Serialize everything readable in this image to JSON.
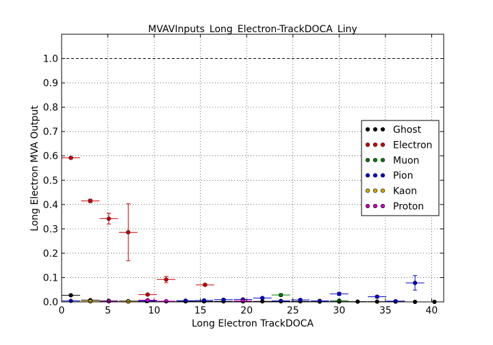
{
  "chart_data": {
    "type": "scatter",
    "title": "MVAVInputs_Long_Electron-TrackDOCA_Liny",
    "xlabel": "Long Electron TrackDOCA",
    "ylabel": "Long Electron MVA Output",
    "xlim": [
      0,
      41.3
    ],
    "ylim": [
      0,
      1.1
    ],
    "xticks": [
      0,
      5,
      10,
      15,
      20,
      25,
      30,
      35,
      40
    ],
    "yticks": [
      0.0,
      0.1,
      0.2,
      0.3,
      0.4,
      0.5,
      0.6,
      0.7,
      0.8,
      0.9,
      1.0
    ],
    "ytick_labels": [
      "0.0",
      "0.1",
      "0.2",
      "0.3",
      "0.4",
      "0.5",
      "0.6",
      "0.7",
      "0.8",
      "0.9",
      "1.0"
    ],
    "grid": true,
    "reference_line_y": 1.0,
    "legend_position": "right",
    "series": [
      {
        "name": "Ghost",
        "color": "#000000",
        "points": [
          {
            "x": 1.0,
            "y": 0.027,
            "xerr": 1.0,
            "yerr": 0.003
          },
          {
            "x": 3.1,
            "y": 0.007,
            "xerr": 1.0,
            "yerr": 0.002
          },
          {
            "x": 5.1,
            "y": 0.004,
            "xerr": 1.0,
            "yerr": 0.002
          },
          {
            "x": 7.2,
            "y": 0.003,
            "xerr": 1.0,
            "yerr": 0.002
          },
          {
            "x": 9.2,
            "y": 0.003,
            "xerr": 1.0,
            "yerr": 0.002
          },
          {
            "x": 11.3,
            "y": 0.002,
            "xerr": 1.0,
            "yerr": 0.002
          },
          {
            "x": 13.4,
            "y": 0.002,
            "xerr": 1.0,
            "yerr": 0.002
          },
          {
            "x": 15.4,
            "y": 0.002,
            "xerr": 1.0,
            "yerr": 0.002
          },
          {
            "x": 17.5,
            "y": 0.002,
            "xerr": 1.0,
            "yerr": 0.002
          },
          {
            "x": 19.6,
            "y": 0.002,
            "xerr": 1.0,
            "yerr": 0.002
          },
          {
            "x": 21.7,
            "y": 0.002,
            "xerr": 1.0,
            "yerr": 0.002
          },
          {
            "x": 23.7,
            "y": 0.002,
            "xerr": 1.0,
            "yerr": 0.002
          },
          {
            "x": 25.8,
            "y": 0.002,
            "xerr": 1.0,
            "yerr": 0.002
          },
          {
            "x": 27.9,
            "y": 0.001,
            "xerr": 1.0,
            "yerr": 0.001
          },
          {
            "x": 30.0,
            "y": 0.001,
            "xerr": 1.0,
            "yerr": 0.001
          },
          {
            "x": 32.0,
            "y": 0.001,
            "xerr": 1.0,
            "yerr": 0.001
          },
          {
            "x": 34.1,
            "y": 0.001,
            "xerr": 1.0,
            "yerr": 0.001
          },
          {
            "x": 36.1,
            "y": 0.001,
            "xerr": 1.0,
            "yerr": 0.001
          },
          {
            "x": 38.2,
            "y": 0.0,
            "xerr": 1.0,
            "yerr": 0.0
          },
          {
            "x": 40.3,
            "y": 0.0,
            "xerr": 1.0,
            "yerr": 0.0
          }
        ]
      },
      {
        "name": "Electron",
        "color": "#cc0000",
        "points": [
          {
            "x": 1.0,
            "y": 0.592,
            "xerr": 1.0,
            "yerr": 0.004
          },
          {
            "x": 3.1,
            "y": 0.415,
            "xerr": 1.0,
            "yerr": 0.007
          },
          {
            "x": 5.1,
            "y": 0.342,
            "xerr": 1.0,
            "yerr": 0.022
          },
          {
            "x": 7.2,
            "y": 0.286,
            "xerr": 1.0,
            "yerr": 0.117
          },
          {
            "x": 9.3,
            "y": 0.03,
            "xerr": 1.0,
            "yerr": 0.003
          },
          {
            "x": 11.3,
            "y": 0.092,
            "xerr": 1.0,
            "yerr": 0.013
          },
          {
            "x": 15.5,
            "y": 0.07,
            "xerr": 1.0,
            "yerr": 0.004
          },
          {
            "x": 19.6,
            "y": 0.003,
            "xerr": 1.0,
            "yerr": 0.002
          }
        ]
      },
      {
        "name": "Muon",
        "color": "#007700",
        "points": [
          {
            "x": 23.7,
            "y": 0.028,
            "xerr": 1.0,
            "yerr": 0.005
          },
          {
            "x": 30.0,
            "y": 0.005,
            "xerr": 1.0,
            "yerr": 0.002
          }
        ]
      },
      {
        "name": "Pion",
        "color": "#0000cc",
        "points": [
          {
            "x": 1.0,
            "y": 0.004,
            "xerr": 1.0,
            "yerr": 0.001
          },
          {
            "x": 9.3,
            "y": 0.004,
            "xerr": 1.0,
            "yerr": 0.001
          },
          {
            "x": 13.4,
            "y": 0.005,
            "xerr": 1.0,
            "yerr": 0.001
          },
          {
            "x": 15.4,
            "y": 0.006,
            "xerr": 1.0,
            "yerr": 0.002
          },
          {
            "x": 17.5,
            "y": 0.009,
            "xerr": 1.0,
            "yerr": 0.002
          },
          {
            "x": 19.6,
            "y": 0.01,
            "xerr": 1.0,
            "yerr": 0.002
          },
          {
            "x": 21.7,
            "y": 0.016,
            "xerr": 1.0,
            "yerr": 0.003
          },
          {
            "x": 23.7,
            "y": 0.004,
            "xerr": 1.0,
            "yerr": 0.002
          },
          {
            "x": 25.8,
            "y": 0.008,
            "xerr": 1.0,
            "yerr": 0.003
          },
          {
            "x": 27.9,
            "y": 0.004,
            "xerr": 1.0,
            "yerr": 0.002
          },
          {
            "x": 30.0,
            "y": 0.033,
            "xerr": 1.0,
            "yerr": 0.006
          },
          {
            "x": 34.1,
            "y": 0.021,
            "xerr": 1.0,
            "yerr": 0.005
          },
          {
            "x": 36.1,
            "y": 0.003,
            "xerr": 1.0,
            "yerr": 0.002
          },
          {
            "x": 38.2,
            "y": 0.078,
            "xerr": 1.0,
            "yerr": 0.03
          }
        ]
      },
      {
        "name": "Kaon",
        "color": "#ccaa00",
        "points": [
          {
            "x": 3.1,
            "y": 0.002,
            "xerr": 1.0,
            "yerr": 0.001
          },
          {
            "x": 7.2,
            "y": 0.001,
            "xerr": 1.0,
            "yerr": 0.001
          }
        ]
      },
      {
        "name": "Proton",
        "color": "#cc00cc",
        "points": [
          {
            "x": 5.1,
            "y": 0.002,
            "xerr": 1.0,
            "yerr": 0.001
          },
          {
            "x": 9.3,
            "y": 0.007,
            "xerr": 1.0,
            "yerr": 0.002
          },
          {
            "x": 11.3,
            "y": 0.003,
            "xerr": 1.0,
            "yerr": 0.002
          },
          {
            "x": 19.6,
            "y": 0.004,
            "xerr": 1.0,
            "yerr": 0.002
          }
        ]
      }
    ]
  }
}
